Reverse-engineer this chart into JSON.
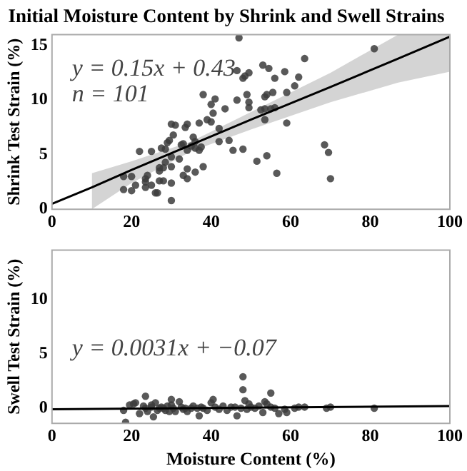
{
  "chart_data": [
    {
      "type": "scatter",
      "title": "Initial Moisture Content by Shrink and Swell Strains",
      "ylabel": "Shrink Test Strain (%)",
      "xlim": [
        0,
        100
      ],
      "ylim": [
        0,
        16
      ],
      "xticks": [
        0,
        20,
        40,
        60,
        80,
        100
      ],
      "yticks": [
        0,
        5,
        10,
        15
      ],
      "marker": "circle",
      "annotations": [
        "y = 0.15x + 0.43",
        "n = 101"
      ],
      "series": [
        {
          "color": "#3c3c3c",
          "x": [
            18,
            18,
            20,
            20,
            21,
            22,
            23.5,
            23.5,
            23.5,
            24,
            25,
            25,
            26,
            26.5,
            27,
            27,
            27,
            27.5,
            28,
            28,
            28.5,
            28.5,
            29,
            29.5,
            30,
            30,
            30,
            30,
            30,
            30.5,
            31,
            32,
            32.5,
            33,
            33,
            33.5,
            34,
            34,
            34,
            34,
            35,
            35.5,
            36,
            36,
            36,
            37,
            37,
            37.5,
            38,
            38,
            39,
            40,
            40,
            40.5,
            41,
            42,
            42,
            43.5,
            44.5,
            45.5,
            46.5,
            46.5,
            47,
            48,
            48,
            48.5,
            49,
            49.5,
            49.5,
            49.5,
            51.5,
            52.5,
            53,
            53.5,
            53.5,
            53.5,
            54,
            54,
            54.5,
            55,
            55.5,
            56,
            56,
            56.5,
            58.5,
            59,
            59,
            61,
            62,
            63.5,
            68.5,
            69.5,
            70,
            81
          ],
          "values": [
            1.8,
            3.0,
            1.7,
            3.0,
            2.2,
            5.3,
            2.0,
            2.5,
            2.8,
            3.1,
            2.2,
            5.3,
            1.5,
            1.5,
            2.6,
            3.5,
            3.8,
            5.6,
            2.6,
            3.8,
            4.3,
            5.5,
            6.1,
            6.3,
            0.8,
            2.4,
            3.9,
            4.8,
            7.8,
            6.8,
            7.7,
            4.6,
            5.9,
            3.1,
            6.0,
            7.5,
            2.8,
            3.7,
            5.4,
            7.8,
            5.8,
            6.6,
            3.4,
            5.6,
            6.2,
            5.4,
            7.9,
            5.7,
            3.9,
            10.5,
            8.2,
            8.0,
            9.6,
            8.8,
            10.1,
            6.2,
            7.4,
            9.2,
            6.3,
            5.4,
            10.0,
            12.7,
            15.7,
            5.5,
            12.0,
            12.2,
            10.5,
            9.3,
            9.8,
            12.5,
            4.4,
            9.1,
            13.2,
            9.2,
            8.2,
            10.3,
            4.9,
            10.5,
            12.9,
            9.2,
            10.7,
            12.0,
            9.3,
            3.3,
            12.6,
            10.7,
            7.9,
            11.3,
            12.1,
            13.8,
            5.9,
            5.2,
            2.8,
            14.7
          ]
        },
        {
          "type": "line",
          "marker": "none",
          "color": "#000000",
          "x": [
            0,
            10,
            20,
            35,
            50,
            70,
            87,
            100
          ],
          "values": [
            0.5,
            2.0,
            3.6,
            5.9,
            8.2,
            11.2,
            13.8,
            15.8
          ],
          "lower": [
            null,
            0,
            2.4,
            5.3,
            7.3,
            9.8,
            11.6,
            12.6
          ],
          "upper": [
            null,
            3.3,
            4.4,
            6.2,
            8.9,
            12.5,
            16,
            16
          ]
        }
      ]
    },
    {
      "type": "scatter",
      "xlabel": "Moisture Content (%)",
      "ylabel": "Swell Test Strain (%)",
      "xlim": [
        0,
        100
      ],
      "ylim": [
        -1.4,
        14.6
      ],
      "xticks": [
        0,
        20,
        40,
        60,
        80,
        100
      ],
      "yticks": [
        0,
        5,
        10
      ],
      "marker": "circle",
      "annotations": [
        "y = 0.0031x + −0.07"
      ],
      "series": [
        {
          "color": "#3c3c3c",
          "x": [
            18,
            18.5,
            19.5,
            20.5,
            21,
            22,
            23,
            23.5,
            23.5,
            24,
            25,
            25,
            25.5,
            26,
            26.5,
            27,
            27.5,
            28,
            28.5,
            29,
            29.5,
            30,
            30,
            30.5,
            31,
            32,
            32.5,
            33,
            33.5,
            34,
            35,
            35.5,
            36.5,
            37,
            37.5,
            38,
            39,
            40,
            40.5,
            41,
            42,
            43,
            44,
            45,
            46,
            46.5,
            47.5,
            48,
            48,
            48.5,
            49,
            49.5,
            50,
            51,
            52,
            53,
            53.5,
            54,
            55,
            55,
            56,
            57,
            58.5,
            59,
            61,
            62,
            63.5,
            69,
            70,
            81
          ],
          "values": [
            -0.2,
            -1.3,
            0.3,
            0.4,
            0.5,
            -0.5,
            0.2,
            1.1,
            0,
            -0.3,
            0.1,
            0.3,
            -0.8,
            0.5,
            -0.2,
            0,
            0.1,
            0,
            -0.2,
            0.2,
            -0.3,
            0.8,
            0.3,
            0,
            -0.3,
            0.6,
            0.1,
            -0.1,
            0,
            -0.3,
            0,
            0.2,
            0,
            -0.7,
            0.1,
            0,
            -0.2,
            0.5,
            0.8,
            0.1,
            -0.1,
            0.2,
            -0.2,
            0.1,
            0.1,
            -0.7,
            0,
            1.7,
            2.9,
            0.7,
            -0.1,
            0.4,
            0.1,
            0,
            0.2,
            -0.4,
            0.6,
            0.4,
            1.4,
            0.1,
            0,
            -0.5,
            -0.1,
            -0.4,
            0,
            0.1,
            0.1,
            0,
            0.1,
            0
          ]
        },
        {
          "type": "line",
          "marker": "none",
          "color": "#000000",
          "x": [
            0,
            100
          ],
          "values": [
            -0.1,
            0.2
          ]
        }
      ]
    }
  ]
}
